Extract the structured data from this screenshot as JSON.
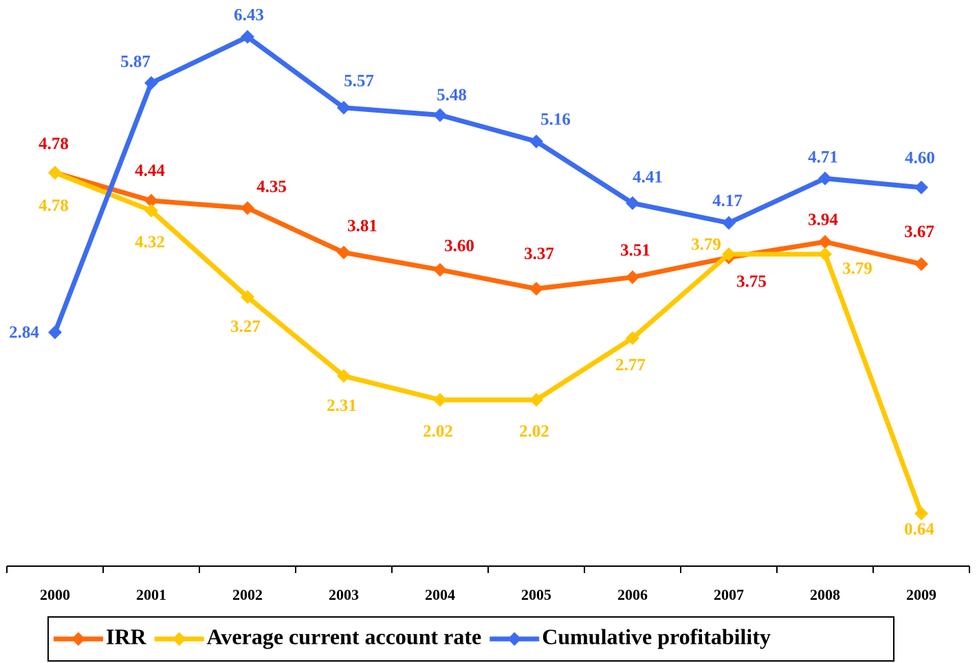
{
  "chart_data": {
    "type": "line",
    "categories": [
      "2000",
      "2001",
      "2002",
      "2003",
      "2004",
      "2005",
      "2006",
      "2007",
      "2008",
      "2009"
    ],
    "series": [
      {
        "name": "IRR",
        "color": "#ff6a0a",
        "label_color": "#e60000",
        "values": [
          4.78,
          4.44,
          4.35,
          3.81,
          3.6,
          3.37,
          3.51,
          3.75,
          3.94,
          3.67
        ],
        "value_labels": [
          "4.78",
          "4.44",
          "4.35",
          "3.81",
          "3.60",
          "3.37",
          "3.51",
          "3.75",
          "3.94",
          "3.67"
        ]
      },
      {
        "name": "Average current account rate",
        "color": "#ffc800",
        "label_color": "#ffc000",
        "values": [
          4.78,
          4.32,
          3.27,
          2.31,
          2.02,
          2.02,
          2.77,
          3.79,
          3.79,
          0.64
        ],
        "value_labels": [
          "4.78",
          "4.32",
          "3.27",
          "2.31",
          "2.02",
          "2.02",
          "2.77",
          "3.79",
          "3.79",
          "0.64"
        ]
      },
      {
        "name": "Cumulative profitability",
        "color": "#3c6cf0",
        "label_color": "#3c6cf0",
        "values": [
          2.84,
          5.87,
          6.43,
          5.57,
          5.48,
          5.16,
          4.41,
          4.17,
          4.71,
          4.6
        ],
        "value_labels": [
          "2.84",
          "5.87",
          "6.43",
          "5.57",
          "5.48",
          "5.16",
          "4.41",
          "4.17",
          "4.71",
          "4.60"
        ]
      }
    ],
    "ylim": [
      0,
      7
    ],
    "legend": "bottom"
  }
}
